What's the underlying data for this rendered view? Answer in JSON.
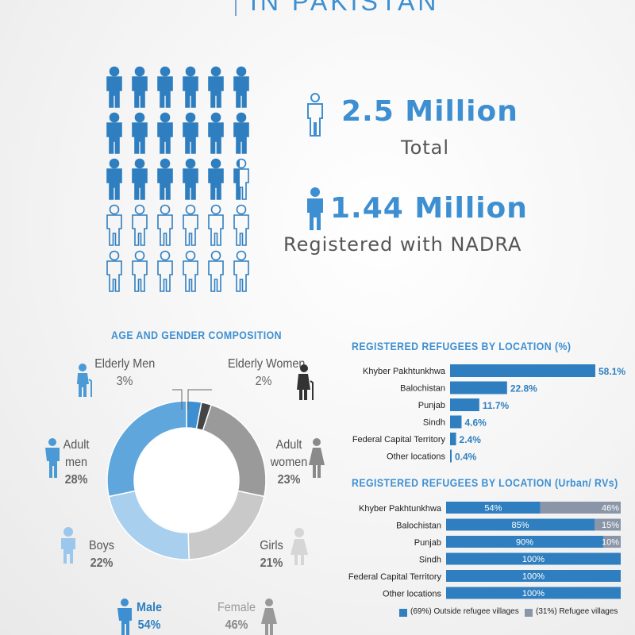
{
  "header": {
    "title": "IN PAKISTAN"
  },
  "stats": {
    "total_value": "2.5 Million",
    "total_label": "Total",
    "registered_value": "1.44 Million",
    "registered_label": "Registered with NADRA"
  },
  "people_grid": {
    "filled_fraction": 0.58,
    "rows": 5,
    "cols": 6
  },
  "colors": {
    "blue": "#2f7fc0",
    "light_blue": "#5fa6dc",
    "lighter_blue": "#a9cfee",
    "gray": "#9a9a9a",
    "light_gray": "#c6c6c6",
    "dark": "#444444",
    "stat_blue": "#3d8fd1"
  },
  "chart_data": [
    {
      "type": "pie",
      "title": "AGE AND GENDER COMPOSITION",
      "slices": [
        {
          "label": "Elderly Men",
          "value": 3,
          "pct_label": "3%"
        },
        {
          "label": "Elderly Women",
          "value": 2,
          "pct_label": "2%"
        },
        {
          "label": "Adult women",
          "value": 23,
          "pct_label": "23%"
        },
        {
          "label": "Girls",
          "value": 21,
          "pct_label": "21%"
        },
        {
          "label": "Boys",
          "value": 22,
          "pct_label": "22%"
        },
        {
          "label": "Adult men",
          "value": 28,
          "pct_label": "28%"
        }
      ],
      "label_lines": {
        "elderly_men": "Elderly Men",
        "elderly_women": "Elderly Women",
        "adult_women_1": "Adult",
        "adult_women_2": "women",
        "adult_men_1": "Adult",
        "adult_men_2": "men",
        "boys": "Boys",
        "girls": "Girls"
      },
      "totals": [
        {
          "label": "Male",
          "pct_label": "54%"
        },
        {
          "label": "Female",
          "pct_label": "46%"
        }
      ]
    },
    {
      "type": "bar",
      "title": "REGISTERED REFUGEES BY LOCATION (%)",
      "categories": [
        "Khyber Pakhtunkhwa",
        "Balochistan",
        "Punjab",
        "Sindh",
        "Federal Capital Territory",
        "Other locations"
      ],
      "values": [
        58.1,
        22.8,
        11.7,
        4.6,
        2.4,
        0.4
      ],
      "value_labels": [
        "58.1%",
        "22.8%",
        "11.7%",
        "4.6%",
        "2.4%",
        "0.4%"
      ],
      "xlim": [
        0,
        58.1
      ]
    },
    {
      "type": "bar",
      "stacked": true,
      "title": "REGISTERED REFUGEES BY LOCATION (Urban/ RVs)",
      "categories": [
        "Khyber Pakhtunkhwa",
        "Balochistan",
        "Punjab",
        "Sindh",
        "Federal Capital Territory",
        "Other locations"
      ],
      "series": [
        {
          "name": "(69%) Outside refugee villages",
          "values": [
            54,
            85,
            90,
            100,
            100,
            100
          ],
          "labels": [
            "54%",
            "85%",
            "90%",
            "100%",
            "100%",
            "100%"
          ]
        },
        {
          "name": "(31%) Refugee villages",
          "values": [
            46,
            15,
            10,
            0,
            0,
            0
          ],
          "labels": [
            "46%",
            "15%",
            "10%",
            "",
            "",
            ""
          ]
        }
      ],
      "legend": "bottom"
    }
  ]
}
